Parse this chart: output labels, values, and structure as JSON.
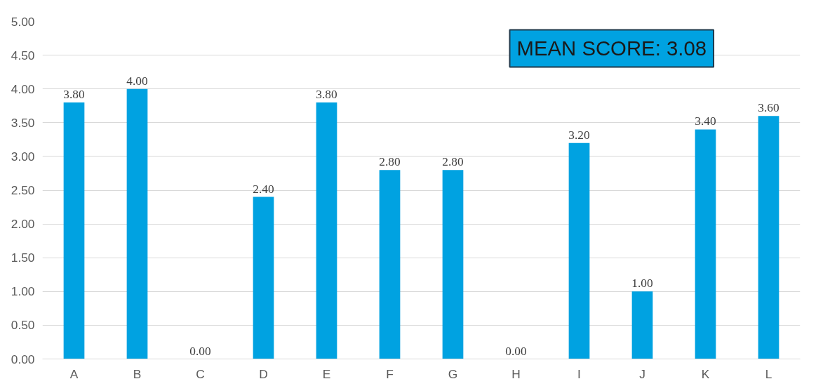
{
  "chart_data": {
    "type": "bar",
    "categories": [
      "A",
      "B",
      "C",
      "D",
      "E",
      "F",
      "G",
      "H",
      "I",
      "J",
      "K",
      "L"
    ],
    "values": [
      3.8,
      4.0,
      0.0,
      2.4,
      3.8,
      2.8,
      2.8,
      0.0,
      3.2,
      1.0,
      3.4,
      3.6
    ],
    "value_labels": [
      "3.80",
      "4.00",
      "0.00",
      "2.40",
      "3.80",
      "2.80",
      "2.80",
      "0.00",
      "3.20",
      "1.00",
      "3.40",
      "3.60"
    ],
    "color": "#00a2e1",
    "ylim": [
      0,
      5
    ],
    "yticks": [
      {
        "value": 0,
        "label": "0.00"
      },
      {
        "value": 0.5,
        "label": "0.50"
      },
      {
        "value": 1,
        "label": "1.00"
      },
      {
        "value": 1.5,
        "label": "1.50"
      },
      {
        "value": 2,
        "label": "2.00"
      },
      {
        "value": 2.5,
        "label": "2.50"
      },
      {
        "value": 3,
        "label": "3.00"
      },
      {
        "value": 3.5,
        "label": "3.50"
      },
      {
        "value": 4,
        "label": "4.00"
      },
      {
        "value": 4.5,
        "label": "4.50"
      },
      {
        "value": 5,
        "label": "5.00"
      }
    ],
    "grid": "y",
    "annotations": [
      "MEAN SCORE: 3.08"
    ]
  }
}
